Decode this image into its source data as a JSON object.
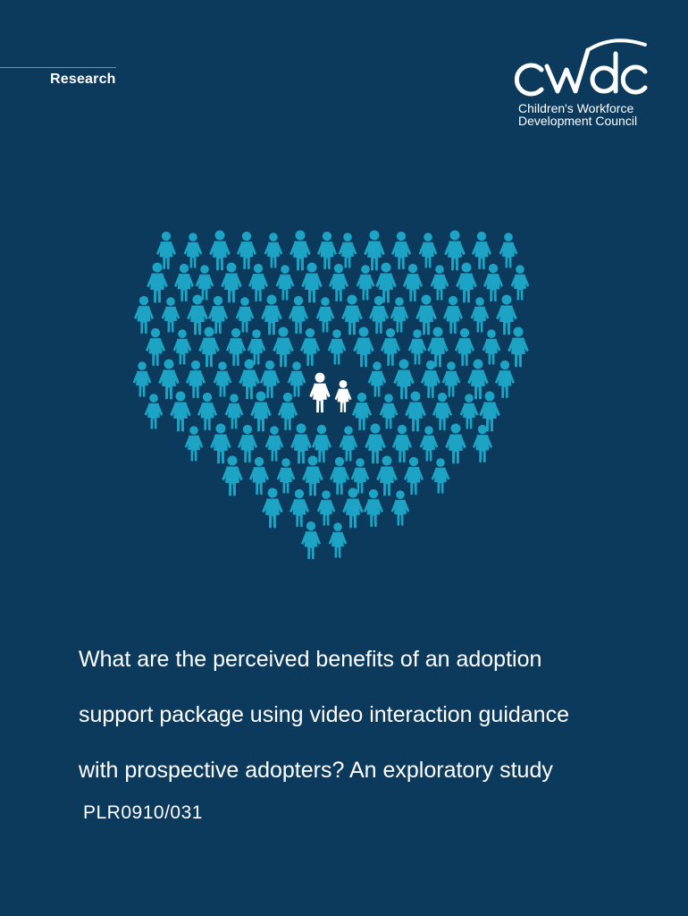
{
  "header": {
    "category": "Research"
  },
  "logo": {
    "wordmark": "cwdc",
    "line1": "Children's Workforce",
    "line2": "Development Council"
  },
  "illustration": {
    "icon": "heart-of-people-icon",
    "figure_color": "#1da3c4",
    "center_color": "#ffffff"
  },
  "report": {
    "title_line1": "What are the perceived benefits of an adoption",
    "title_line2": "support package using video interaction guidance",
    "title_line3": "with prospective adopters? An exploratory study",
    "code": "PLR0910/031"
  },
  "colors": {
    "background": "#0b3a5c",
    "text": "#ffffff"
  }
}
